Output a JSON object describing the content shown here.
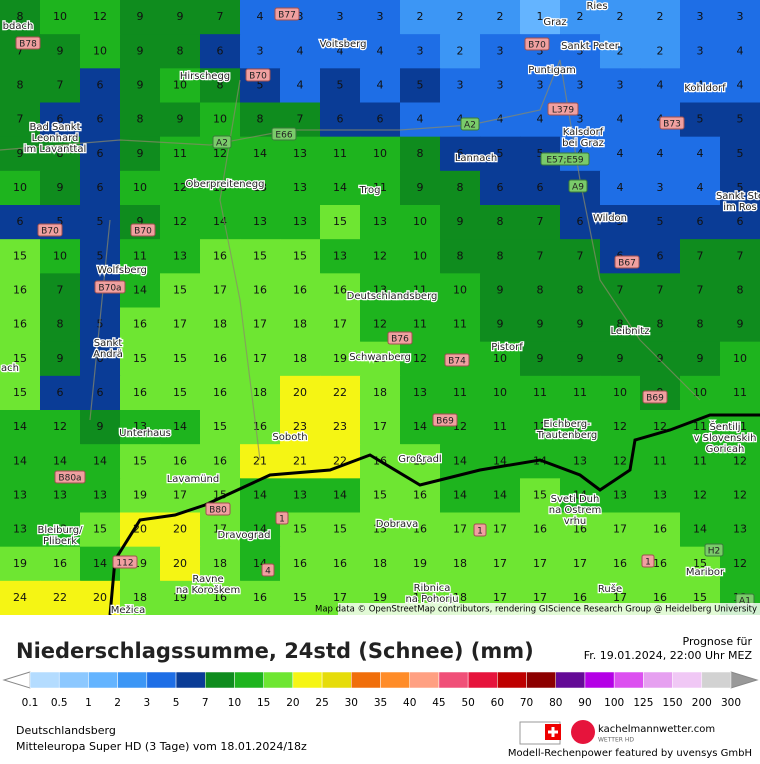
{
  "map": {
    "grid": [
      [
        8,
        10,
        12,
        9,
        9,
        7,
        4,
        3,
        3,
        3,
        2,
        2,
        2,
        1,
        2,
        2,
        2,
        3,
        3
      ],
      [
        7,
        9,
        10,
        9,
        8,
        6,
        3,
        4,
        4,
        4,
        3,
        2,
        3,
        3,
        3,
        2,
        2,
        3,
        4
      ],
      [
        8,
        7,
        6,
        9,
        10,
        8,
        5,
        4,
        5,
        4,
        5,
        3,
        3,
        3,
        3,
        3,
        4,
        4,
        4
      ],
      [
        7,
        6,
        6,
        8,
        9,
        10,
        8,
        7,
        6,
        6,
        4,
        4,
        4,
        4,
        3,
        4,
        4,
        5,
        5
      ],
      [
        9,
        8,
        6,
        9,
        11,
        12,
        14,
        13,
        11,
        10,
        8,
        6,
        5,
        5,
        4,
        4,
        4,
        4,
        5
      ],
      [
        10,
        9,
        6,
        10,
        12,
        13,
        13,
        13,
        14,
        11,
        9,
        8,
        6,
        6,
        5,
        4,
        3,
        4,
        5
      ],
      [
        6,
        5,
        5,
        9,
        12,
        14,
        13,
        13,
        15,
        13,
        10,
        9,
        8,
        7,
        6,
        5,
        5,
        6,
        6
      ],
      [
        15,
        10,
        5,
        11,
        13,
        16,
        15,
        15,
        13,
        12,
        10,
        8,
        8,
        7,
        7,
        6,
        6,
        7,
        7
      ],
      [
        16,
        7,
        6,
        14,
        15,
        17,
        16,
        16,
        16,
        13,
        11,
        10,
        9,
        8,
        8,
        7,
        7,
        7,
        8
      ],
      [
        16,
        8,
        5,
        16,
        17,
        18,
        17,
        18,
        17,
        12,
        11,
        11,
        9,
        9,
        9,
        8,
        8,
        8,
        9
      ],
      [
        15,
        9,
        6,
        15,
        15,
        16,
        17,
        18,
        19,
        18,
        12,
        10,
        10,
        9,
        9,
        9,
        9,
        9,
        10
      ],
      [
        15,
        6,
        6,
        16,
        15,
        16,
        18,
        20,
        22,
        18,
        13,
        11,
        10,
        11,
        11,
        10,
        9,
        10,
        11
      ],
      [
        14,
        12,
        9,
        13,
        14,
        15,
        16,
        23,
        23,
        17,
        14,
        12,
        11,
        12,
        11,
        12,
        12,
        11,
        11
      ],
      [
        14,
        14,
        14,
        15,
        16,
        16,
        21,
        21,
        22,
        16,
        15,
        14,
        14,
        14,
        13,
        12,
        11,
        11,
        12
      ],
      [
        13,
        13,
        13,
        19,
        17,
        15,
        14,
        13,
        14,
        15,
        16,
        14,
        14,
        15,
        14,
        13,
        13,
        12,
        12
      ],
      [
        13,
        13,
        15,
        20,
        20,
        17,
        14,
        15,
        15,
        15,
        16,
        17,
        17,
        16,
        16,
        17,
        16,
        14,
        13
      ],
      [
        19,
        16,
        14,
        19,
        20,
        18,
        14,
        16,
        16,
        18,
        19,
        18,
        17,
        17,
        17,
        16,
        16,
        15,
        12
      ],
      [
        24,
        22,
        20,
        18,
        19,
        16,
        16,
        15,
        17,
        19,
        19,
        18,
        17,
        17,
        16,
        17,
        16,
        15,
        13
      ]
    ],
    "places": [
      "Voitsberg",
      "Graz",
      "Hirschegg",
      "Bad Sankt",
      "Leonhard",
      "im Lavanttal",
      "Oberpreitenegg",
      "Trog",
      "Lannach",
      "Kalsdorf",
      "bei Graz",
      "Wildon",
      "Wolfsberg",
      "Deutschlandsberg",
      "Schwanberg",
      "Sankt",
      "Andrä",
      "Unterhaus",
      "Soboth",
      "Großradl",
      "Pistorf",
      "Leibnitz",
      "Eichberg-",
      "Trautenberg",
      "Lavamünd",
      "Dravograd",
      "Dobrava",
      "Ravne",
      "na Koroškem",
      "Ribnica",
      "na Pohorju",
      "Bleiburg/",
      "Pliberk",
      "Sveti Duh",
      "na Ostrem",
      "vrhu",
      "Šentilj",
      "v Slovenskih",
      "Goricah",
      "Maribor",
      "Ruše",
      "Mežica",
      "Puntigam",
      "Sankt Peter",
      "Kohldorf",
      "Sankt Ste",
      "im Ros",
      "Ries",
      "bdach",
      "ach"
    ],
    "roads": [
      "B77",
      "B78",
      "B70",
      "A2",
      "E66",
      "L379",
      "B73",
      "E57;E59",
      "A9",
      "B67",
      "B70a",
      "B76",
      "B74",
      "B69",
      "B80a",
      "B80",
      "1",
      "112",
      "4",
      "H2",
      "A1",
      "A2",
      "B70",
      "B70",
      "B69",
      "1",
      "1",
      "B70"
    ],
    "attribution": "Map data © OpenStreetMap contributors, rendering GIScience Research Group @ Heidelberg University"
  },
  "footer": {
    "title": "Niederschlagssumme, 24std (Schnee) (mm)",
    "forecast_label": "Prognose für",
    "forecast_time": "Fr. 19.01.2024, 22:00 Uhr MEZ",
    "legend": {
      "ticks": [
        0.1,
        0.5,
        1,
        2,
        3,
        5,
        7,
        10,
        15,
        20,
        25,
        30,
        35,
        40,
        45,
        50,
        60,
        70,
        80,
        90,
        100,
        125,
        150,
        200,
        300
      ],
      "colors": [
        "#b4dcff",
        "#8cc8ff",
        "#64b4ff",
        "#3c96f5",
        "#1e6ee6",
        "#0a3c96",
        "#0f8c1e",
        "#1eb41e",
        "#6ee632",
        "#f5f514",
        "#e6dc0a",
        "#f06e0a",
        "#ff8c28",
        "#ffa082",
        "#f05078",
        "#e6143c",
        "#be0000",
        "#8c0000",
        "#640a96",
        "#b400e6",
        "#dc50f0",
        "#e6a0f0",
        "#f0c8f5",
        "#d2d2d2"
      ]
    },
    "location": "Deutschlandsberg",
    "model": "Mitteleuropa Super HD (3 Tage) vom 18.01.2024/18z",
    "brand": "kachelmannwetter.com",
    "brand_sub": "WETTER HD",
    "credit": "Modell-Rechenpower featured by uvensys GmbH"
  }
}
